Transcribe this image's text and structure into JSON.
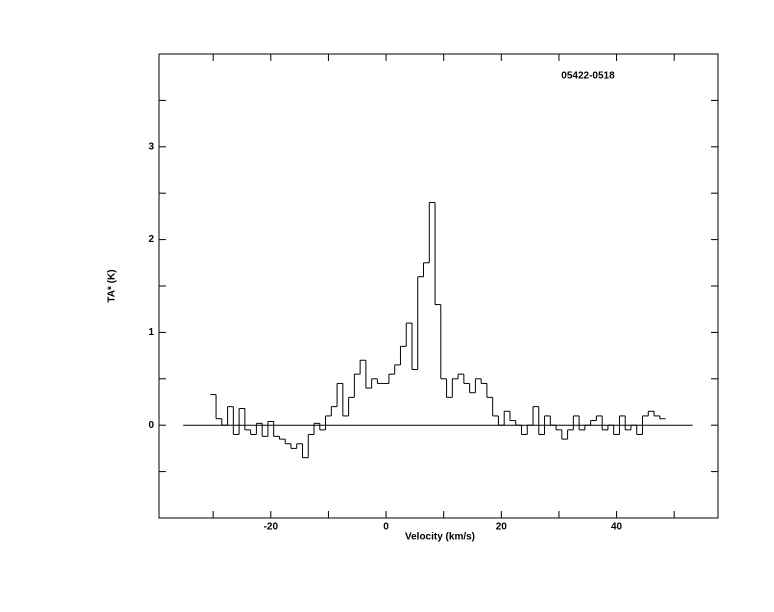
{
  "chart_data": {
    "type": "step",
    "annotation": "05422-0518",
    "x_label": "Velocity (km/s)",
    "y_label": "TA* (K)",
    "xlim": [
      -39.4,
      57.6
    ],
    "ylim": [
      -1,
      4
    ],
    "xticks": [
      -20,
      0,
      20,
      40
    ],
    "xminorticks": [
      -30,
      -10,
      10,
      30,
      50
    ],
    "yticks": [
      0,
      1,
      2,
      3
    ],
    "yminorticks": [
      -0.5,
      0.5,
      1.5,
      2.5,
      3.5
    ],
    "zero_line_xrange": [
      -35.2,
      53.2
    ],
    "color": "#000000",
    "x": [
      -30,
      -29,
      -28,
      -27,
      -26,
      -25,
      -24,
      -23,
      -22,
      -21,
      -20,
      -19,
      -18,
      -17,
      -16,
      -15,
      -14,
      -13,
      -12,
      -11,
      -10,
      -9,
      -8,
      -7,
      -6,
      -5,
      -4,
      -3,
      -2,
      -1,
      0,
      1,
      2,
      3,
      4,
      5,
      6,
      7,
      8,
      9,
      10,
      11,
      12,
      13,
      14,
      15,
      16,
      17,
      18,
      19,
      20,
      21,
      22,
      23,
      24,
      25,
      26,
      27,
      28,
      29,
      30,
      31,
      32,
      33,
      34,
      35,
      36,
      37,
      38,
      39,
      40,
      41,
      42,
      43,
      44,
      45,
      46,
      47,
      48
    ],
    "values": [
      0.33,
      0.07,
      0.0,
      0.2,
      -0.1,
      0.18,
      -0.05,
      -0.1,
      0.02,
      -0.12,
      0.04,
      -0.12,
      -0.15,
      -0.2,
      -0.25,
      -0.2,
      -0.35,
      -0.1,
      0.02,
      -0.05,
      0.1,
      0.2,
      0.45,
      0.1,
      0.3,
      0.55,
      0.7,
      0.4,
      0.5,
      0.45,
      0.45,
      0.55,
      0.65,
      0.85,
      1.1,
      0.6,
      1.6,
      1.75,
      2.4,
      1.3,
      0.5,
      0.3,
      0.5,
      0.55,
      0.45,
      0.35,
      0.5,
      0.45,
      0.3,
      0.1,
      0.0,
      0.15,
      0.05,
      0.0,
      -0.1,
      0.0,
      0.2,
      -0.1,
      0.1,
      0.0,
      -0.05,
      -0.15,
      -0.05,
      0.1,
      -0.05,
      0.0,
      0.05,
      0.1,
      -0.05,
      0.0,
      -0.1,
      0.1,
      -0.05,
      0.0,
      -0.1,
      0.1,
      0.15,
      0.1,
      0.07
    ]
  }
}
